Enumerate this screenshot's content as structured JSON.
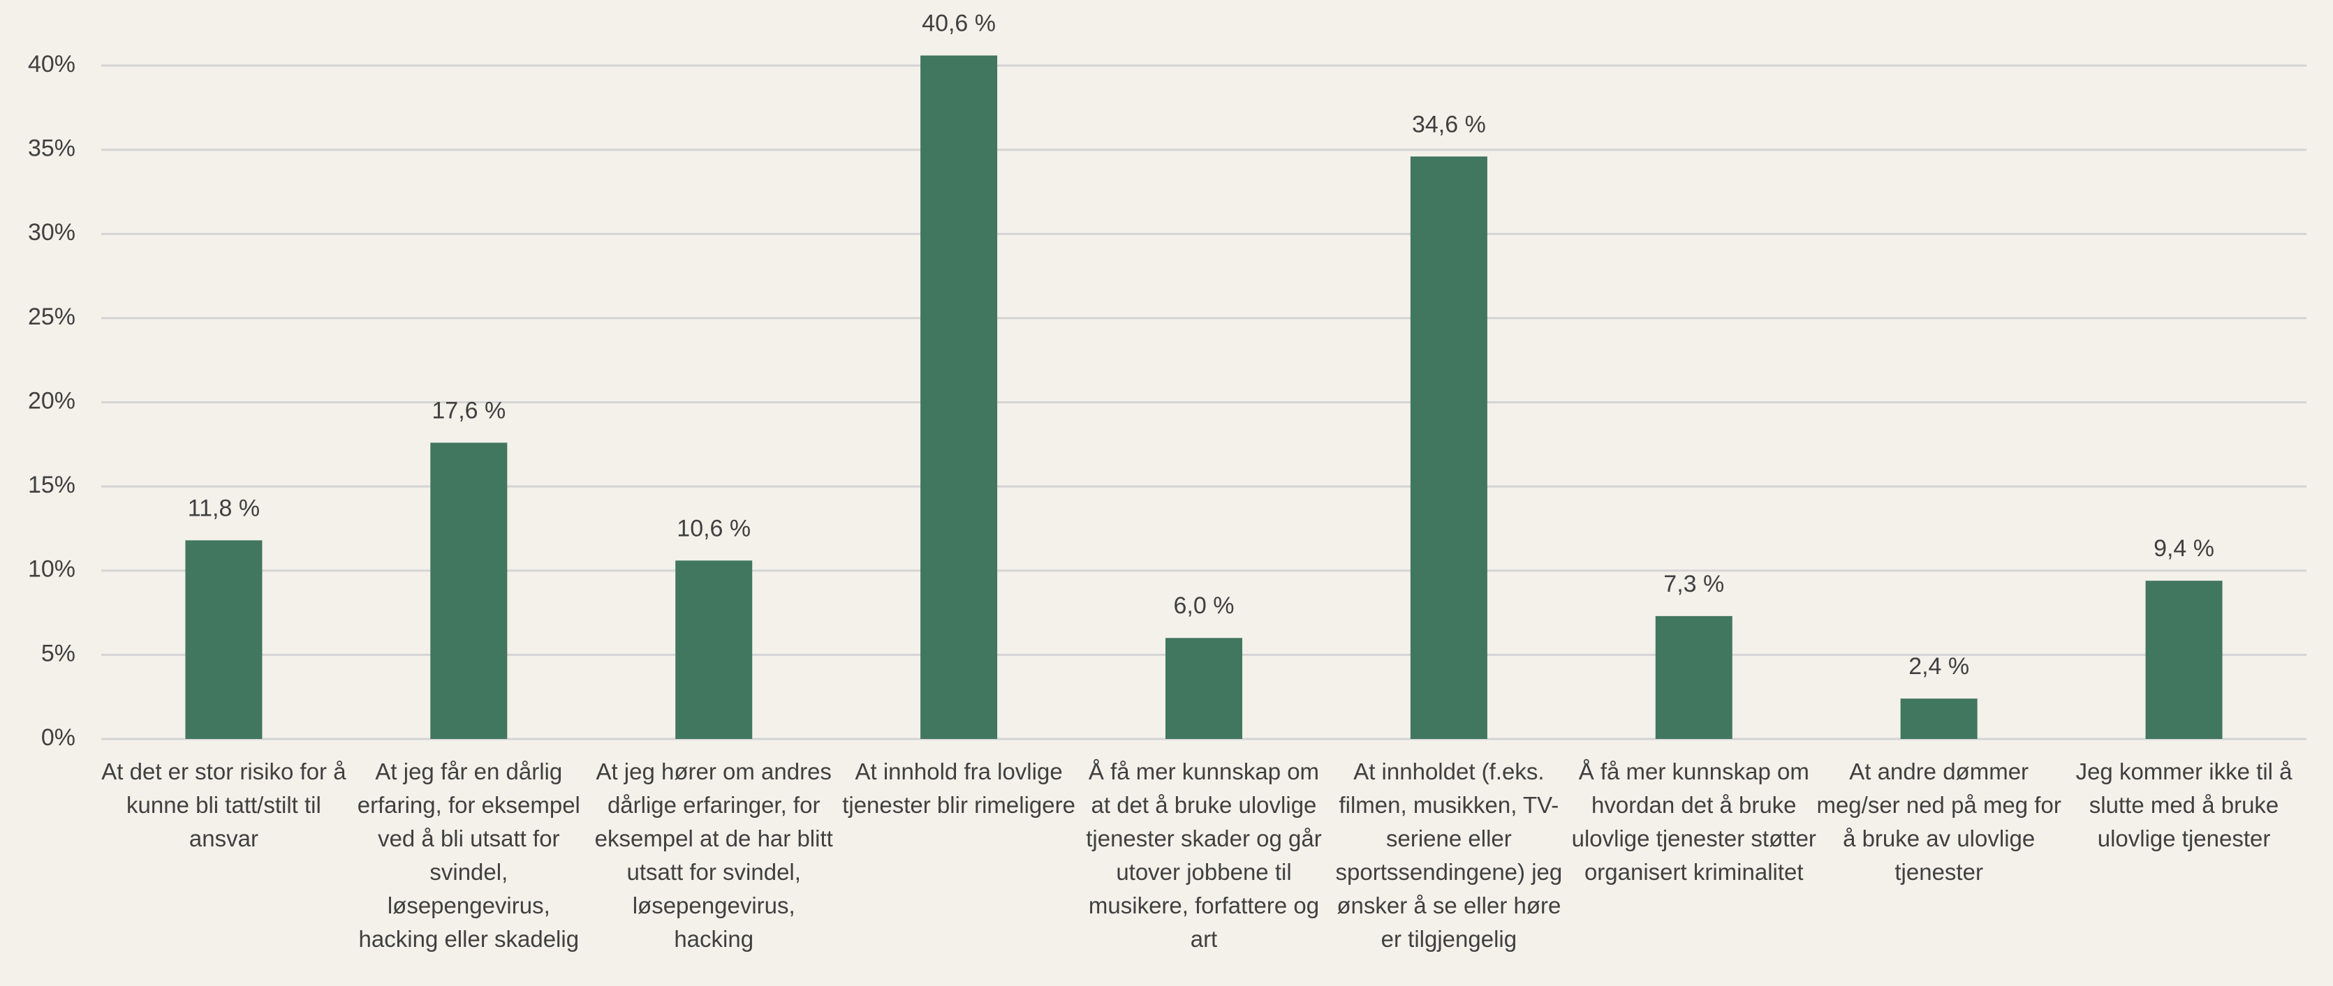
{
  "chart_data": {
    "type": "bar",
    "categories": [
      "At det er stor risiko for å kunne bli tatt/stilt til ansvar",
      "At jeg får en dårlig erfaring, for eksempel ved å bli utsatt for svindel, løsepengevirus, hacking eller skadelig",
      "At jeg hører om andres dårlige erfaringer, for eksempel at de har blitt utsatt for svindel, løsepengevirus, hacking",
      "At innhold fra lovlige tjenester blir rimeligere",
      "Å få mer kunnskap om at det å bruke ulovlige tjenester skader og går utover jobbene til musikere, forfattere og art",
      "At innholdet (f.eks. filmen, musikken, TV-seriene eller sportssendingene) jeg ønsker å se eller høre er tilgjengelig",
      "Å få mer kunnskap om hvordan det å bruke ulovlige tjenester støtter organisert kriminalitet",
      "At andre dømmer meg/ser ned på meg for å bruke av ulovlige tjenester",
      "Jeg kommer ikke til å slutte med å bruke ulovlige tjenester"
    ],
    "values": [
      11.8,
      17.6,
      10.6,
      40.6,
      6.0,
      34.6,
      7.3,
      2.4,
      9.4
    ],
    "value_labels": [
      "11,8 %",
      "17,6 %",
      "10,6 %",
      "40,6 %",
      "6,0 %",
      "34,6 %",
      "7,3 %",
      "2,4 %",
      "9,4 %"
    ],
    "color": "#41765f",
    "ylim": [
      0,
      40
    ],
    "yticks": [
      {
        "value": 0,
        "label": "0%"
      },
      {
        "value": 5,
        "label": "5%"
      },
      {
        "value": 10,
        "label": "10%"
      },
      {
        "value": 15,
        "label": "15%"
      },
      {
        "value": 20,
        "label": "20%"
      },
      {
        "value": 25,
        "label": "25%"
      },
      {
        "value": 30,
        "label": "30%"
      },
      {
        "value": 35,
        "label": "35%"
      },
      {
        "value": 40,
        "label": "40%"
      }
    ],
    "grid": true
  }
}
